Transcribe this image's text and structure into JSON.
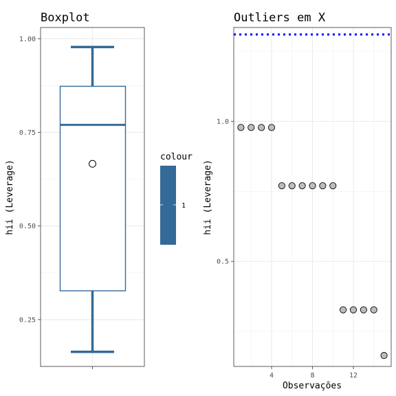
{
  "chart_data": [
    {
      "type": "boxplot",
      "title": "Boxplot",
      "xlabel": "",
      "ylabel": "hii (Leverage)",
      "ylim": [
        0.125,
        1.03
      ],
      "yticks": [
        0.25,
        0.5,
        0.75,
        1.0
      ],
      "ytick_labels": [
        "0.25",
        "0.50",
        "0.75",
        "1.00"
      ],
      "box": {
        "whisker_low": 0.164,
        "q1": 0.327,
        "median": 0.77,
        "q3": 0.873,
        "whisker_high": 0.978,
        "mean": 0.666
      },
      "color": "#336a98",
      "grid": true,
      "legend": {
        "title": "colour",
        "label": "1",
        "color": "#336a98",
        "position": "right"
      }
    },
    {
      "type": "scatter",
      "title": "Outliers em X",
      "xlabel": "Observações",
      "ylabel": "hii (Leverage)",
      "xlim": [
        0.3,
        15.7
      ],
      "ylim": [
        0.125,
        1.335
      ],
      "xticks": [
        4,
        8,
        12
      ],
      "xtick_labels": [
        "4",
        "8",
        "12"
      ],
      "yticks": [
        0.5,
        1.0
      ],
      "ytick_labels": [
        "0.5",
        "1.0"
      ],
      "points": {
        "x": [
          1,
          2,
          3,
          4,
          5,
          6,
          7,
          8,
          9,
          10,
          11,
          12,
          13,
          14,
          15
        ],
        "y": [
          0.978,
          0.978,
          0.978,
          0.978,
          0.77,
          0.77,
          0.77,
          0.77,
          0.77,
          0.77,
          0.327,
          0.327,
          0.327,
          0.327,
          0.164
        ]
      },
      "threshold": {
        "y": 1.31,
        "style": "dotted",
        "color": "#0000ff"
      },
      "point_color": "#bdbdbd",
      "grid": true
    }
  ]
}
